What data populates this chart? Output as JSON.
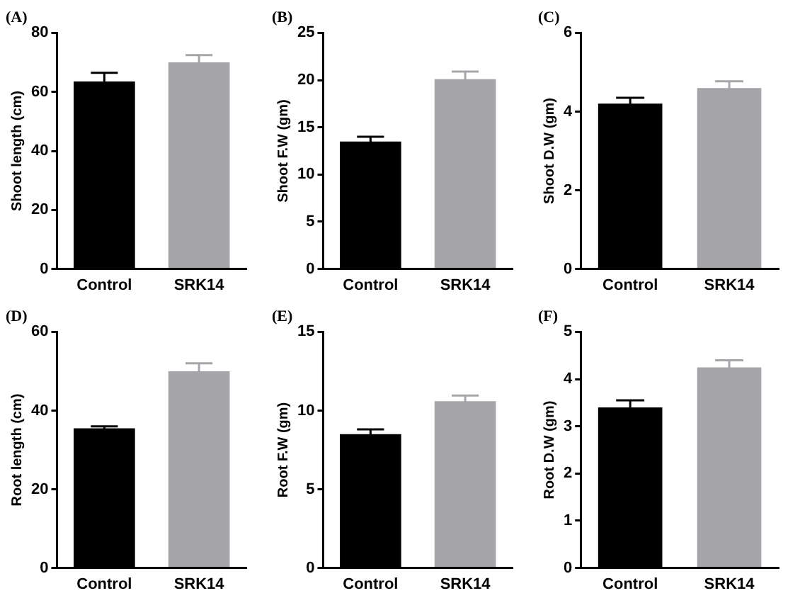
{
  "chart_data": [
    {
      "type": "bar",
      "title": "(A)",
      "ylabel": "Shoot length (cm)",
      "categories": [
        "Control",
        "SRK14"
      ],
      "values": [
        63.5,
        70
      ],
      "errors": [
        3,
        2.5
      ],
      "colors": [
        "#000000",
        "#a6a6aa"
      ],
      "ylim": [
        0,
        80
      ],
      "yticks": [
        0,
        20,
        40,
        60,
        80
      ],
      "grid": false,
      "legend": false
    },
    {
      "type": "bar",
      "title": "(B)",
      "ylabel": "Shoot F.W (gm)",
      "categories": [
        "Control",
        "SRK14"
      ],
      "values": [
        13.5,
        20.1
      ],
      "errors": [
        0.5,
        0.8
      ],
      "colors": [
        "#000000",
        "#a6a6aa"
      ],
      "ylim": [
        0,
        25
      ],
      "yticks": [
        0,
        5,
        10,
        15,
        20,
        25
      ],
      "grid": false,
      "legend": false
    },
    {
      "type": "bar",
      "title": "(C)",
      "ylabel": "Shoot D.W (gm)",
      "categories": [
        "Control",
        "SRK14"
      ],
      "values": [
        4.2,
        4.6
      ],
      "errors": [
        0.15,
        0.17
      ],
      "colors": [
        "#000000",
        "#a6a6aa"
      ],
      "ylim": [
        0,
        6
      ],
      "yticks": [
        0,
        2,
        4,
        6
      ],
      "grid": false,
      "legend": false
    },
    {
      "type": "bar",
      "title": "(D)",
      "ylabel": "Root length (cm)",
      "categories": [
        "Control",
        "SRK14"
      ],
      "values": [
        35.5,
        50
      ],
      "errors": [
        0.5,
        2
      ],
      "colors": [
        "#000000",
        "#a6a6aa"
      ],
      "ylim": [
        0,
        60
      ],
      "yticks": [
        0,
        20,
        40,
        60
      ],
      "grid": false,
      "legend": false
    },
    {
      "type": "bar",
      "title": "(E)",
      "ylabel": "Root F.W (gm)",
      "categories": [
        "Control",
        "SRK14"
      ],
      "values": [
        8.5,
        10.6
      ],
      "errors": [
        0.3,
        0.35
      ],
      "colors": [
        "#000000",
        "#a6a6aa"
      ],
      "ylim": [
        0,
        15
      ],
      "yticks": [
        0,
        5,
        10,
        15
      ],
      "grid": false,
      "legend": false
    },
    {
      "type": "bar",
      "title": "(F)",
      "ylabel": "Root D.W (gm)",
      "categories": [
        "Control",
        "SRK14"
      ],
      "values": [
        3.4,
        4.25
      ],
      "errors": [
        0.15,
        0.15
      ],
      "colors": [
        "#000000",
        "#a6a6aa"
      ],
      "ylim": [
        0,
        5
      ],
      "yticks": [
        0,
        1,
        2,
        3,
        4,
        5
      ],
      "grid": false,
      "legend": false
    }
  ]
}
